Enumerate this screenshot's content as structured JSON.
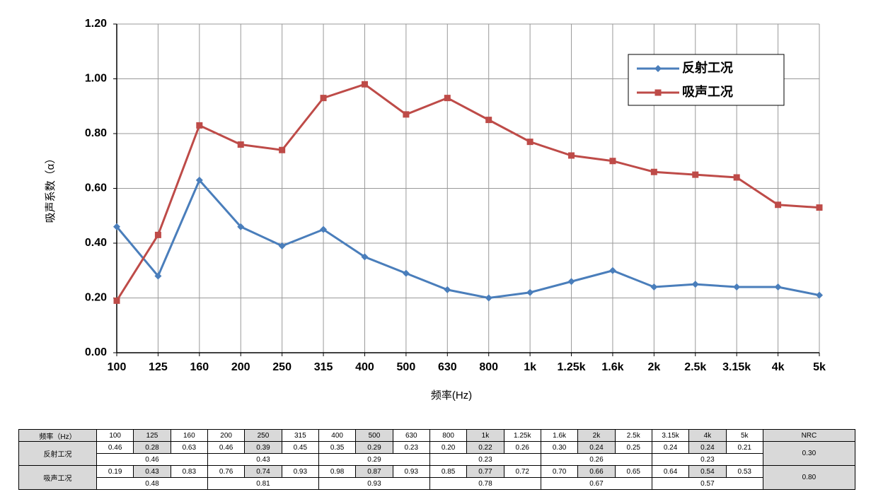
{
  "chart_data": {
    "type": "line",
    "x_label": "频率(Hz)",
    "y_label": "吸声系数（α）",
    "categories": [
      "100",
      "125",
      "160",
      "200",
      "250",
      "315",
      "400",
      "500",
      "630",
      "800",
      "1k",
      "1.25k",
      "1.6k",
      "2k",
      "2.5k",
      "3.15k",
      "4k",
      "5k"
    ],
    "series": [
      {
        "name": "反射工况",
        "color": "#4a7ebb",
        "marker": "diamond",
        "values": [
          0.46,
          0.28,
          0.63,
          0.46,
          0.39,
          0.45,
          0.35,
          0.29,
          0.23,
          0.2,
          0.22,
          0.26,
          0.3,
          0.24,
          0.25,
          0.24,
          0.24,
          0.21
        ]
      },
      {
        "name": "吸声工况",
        "color": "#be4b48",
        "marker": "square",
        "values": [
          0.19,
          0.43,
          0.83,
          0.76,
          0.74,
          0.93,
          0.98,
          0.87,
          0.93,
          0.85,
          0.77,
          0.72,
          0.7,
          0.66,
          0.65,
          0.64,
          0.54,
          0.53
        ]
      }
    ],
    "ylim": [
      0,
      1.2
    ],
    "yticks": [
      {
        "value": 0,
        "label": "0.00"
      },
      {
        "value": 0.2,
        "label": "0.20"
      },
      {
        "value": 0.4,
        "label": "0.40"
      },
      {
        "value": 0.6,
        "label": "0.60"
      },
      {
        "value": 0.8,
        "label": "0.80"
      },
      {
        "value": 1.0,
        "label": "1.00"
      },
      {
        "value": 1.2,
        "label": "1.20"
      }
    ],
    "grid": true,
    "legend_position": "upper right"
  },
  "table": {
    "header": [
      "频率（Hz）",
      "100",
      "125",
      "160",
      "200",
      "250",
      "315",
      "400",
      "500",
      "630",
      "800",
      "1k",
      "1.25k",
      "1.6k",
      "2k",
      "2.5k",
      "3.15k",
      "4k",
      "5k",
      "NRC"
    ],
    "rows": [
      {
        "label": "反射工况",
        "values": [
          "0.46",
          "0.28",
          "0.63",
          "0.46",
          "0.39",
          "0.45",
          "0.35",
          "0.29",
          "0.23",
          "0.20",
          "0.22",
          "0.26",
          "0.30",
          "0.24",
          "0.25",
          "0.24",
          "0.24",
          "0.21"
        ],
        "group_averages": [
          "0.46",
          "0.43",
          "0.29",
          "0.23",
          "0.26",
          "0.23"
        ],
        "nrc": "0.30"
      },
      {
        "label": "吸声工况",
        "values": [
          "0.19",
          "0.43",
          "0.83",
          "0.76",
          "0.74",
          "0.93",
          "0.98",
          "0.87",
          "0.93",
          "0.85",
          "0.77",
          "0.72",
          "0.70",
          "0.66",
          "0.65",
          "0.64",
          "0.54",
          "0.53"
        ],
        "group_averages": [
          "0.48",
          "0.81",
          "0.93",
          "0.78",
          "0.67",
          "0.57"
        ],
        "nrc": "0.80"
      }
    ]
  }
}
